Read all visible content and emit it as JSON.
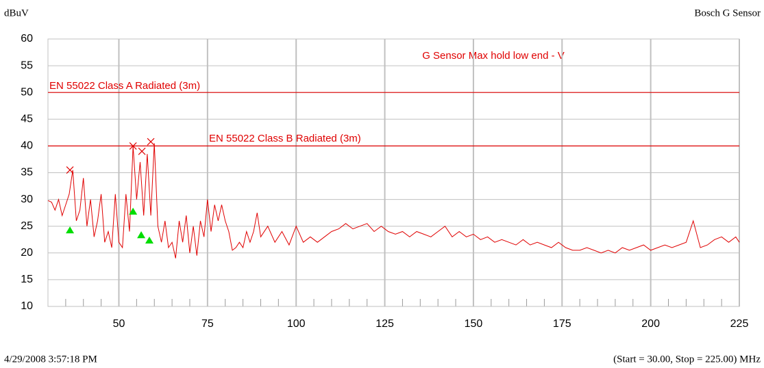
{
  "chart_data": {
    "type": "line",
    "title": "G Sensor Max hold low end - V",
    "y_label": "dBuV",
    "header_right": "Bosch G Sensor",
    "footer_left": "4/29/2008 3:57:18 PM",
    "footer_right": "(Start = 30.00, Stop = 225.00) MHz",
    "xlim": [
      30,
      225
    ],
    "ylim": [
      10,
      60
    ],
    "xticks": [
      50,
      75,
      100,
      125,
      150,
      175,
      200,
      225
    ],
    "xminorticks": [
      35,
      40,
      45,
      55,
      60,
      65,
      70,
      80,
      85,
      90,
      95,
      105,
      110,
      115,
      120,
      130,
      135,
      140,
      145,
      155,
      160,
      165,
      170,
      180,
      185,
      190,
      195,
      205,
      210,
      215,
      220
    ],
    "yticks": [
      10,
      15,
      20,
      25,
      30,
      35,
      40,
      45,
      50,
      55,
      60
    ],
    "grid": true,
    "limits": [
      {
        "name": "EN 55022 Class A Radiated (3m)",
        "value": 50,
        "color": "#e00000"
      },
      {
        "name": "EN 55022 Class B Radiated (3m)",
        "value": 40,
        "color": "#e00000"
      }
    ],
    "series": [
      {
        "color": "#e00000",
        "x": [
          30,
          31,
          32,
          33,
          34,
          35,
          36,
          37,
          38,
          39,
          40,
          41,
          42,
          43,
          44,
          45,
          46,
          47,
          48,
          49,
          50,
          51,
          52,
          53,
          54,
          55,
          56,
          57,
          58,
          59,
          60,
          61,
          62,
          63,
          64,
          65,
          66,
          67,
          68,
          69,
          70,
          71,
          72,
          73,
          74,
          75,
          76,
          77,
          78,
          79,
          80,
          81,
          82,
          83,
          84,
          85,
          86,
          87,
          88,
          89,
          90,
          92,
          94,
          96,
          98,
          100,
          102,
          104,
          106,
          108,
          110,
          112,
          114,
          116,
          118,
          120,
          122,
          124,
          126,
          128,
          130,
          132,
          134,
          136,
          138,
          140,
          142,
          144,
          146,
          148,
          150,
          152,
          154,
          156,
          158,
          160,
          162,
          164,
          166,
          168,
          170,
          172,
          174,
          176,
          178,
          180,
          182,
          184,
          186,
          188,
          190,
          192,
          194,
          196,
          198,
          200,
          202,
          204,
          206,
          208,
          210,
          212,
          214,
          216,
          218,
          220,
          222,
          224,
          225
        ],
        "values": [
          29.8,
          29.5,
          28,
          30,
          27,
          29,
          31,
          35.5,
          26,
          28,
          34,
          25,
          30,
          23,
          26,
          31,
          22,
          24,
          21,
          31,
          22,
          21,
          31,
          24,
          40,
          30,
          37,
          27,
          38.5,
          27,
          40.5,
          25,
          22,
          26,
          21,
          22,
          19,
          26,
          22,
          27,
          20,
          25,
          19.5,
          26,
          23,
          30,
          24,
          29,
          26,
          29,
          26,
          24,
          20.5,
          21,
          22,
          21,
          24,
          22,
          24,
          27.5,
          23,
          25,
          22,
          24,
          21.5,
          25,
          22,
          23,
          22,
          23,
          24,
          24.5,
          25.5,
          24.5,
          25,
          25.5,
          24,
          25,
          24,
          23.5,
          24,
          23,
          24,
          23.5,
          23,
          24,
          25,
          23,
          24,
          23,
          23.5,
          22.5,
          23,
          22,
          22.5,
          22,
          21.5,
          22.5,
          21.5,
          22,
          21.5,
          21,
          22,
          21,
          20.5,
          20.5,
          21,
          20.5,
          20,
          20.5,
          20,
          21,
          20.5,
          21,
          21.5,
          20.5,
          21,
          21.5,
          21,
          21.5,
          22,
          26,
          21,
          21.5,
          22.5,
          23,
          22,
          23,
          22
        ]
      }
    ],
    "peaks": {
      "color": "#e00000",
      "x": [
        36.2,
        54,
        56.5,
        59
      ],
      "values": [
        35.5,
        40,
        39,
        40.8
      ]
    },
    "quasi_peaks": {
      "color": "#00dd00",
      "x": [
        36.2,
        54,
        56.3,
        58.6
      ],
      "values": [
        24.2,
        27.7,
        23.3,
        22.3
      ]
    }
  }
}
